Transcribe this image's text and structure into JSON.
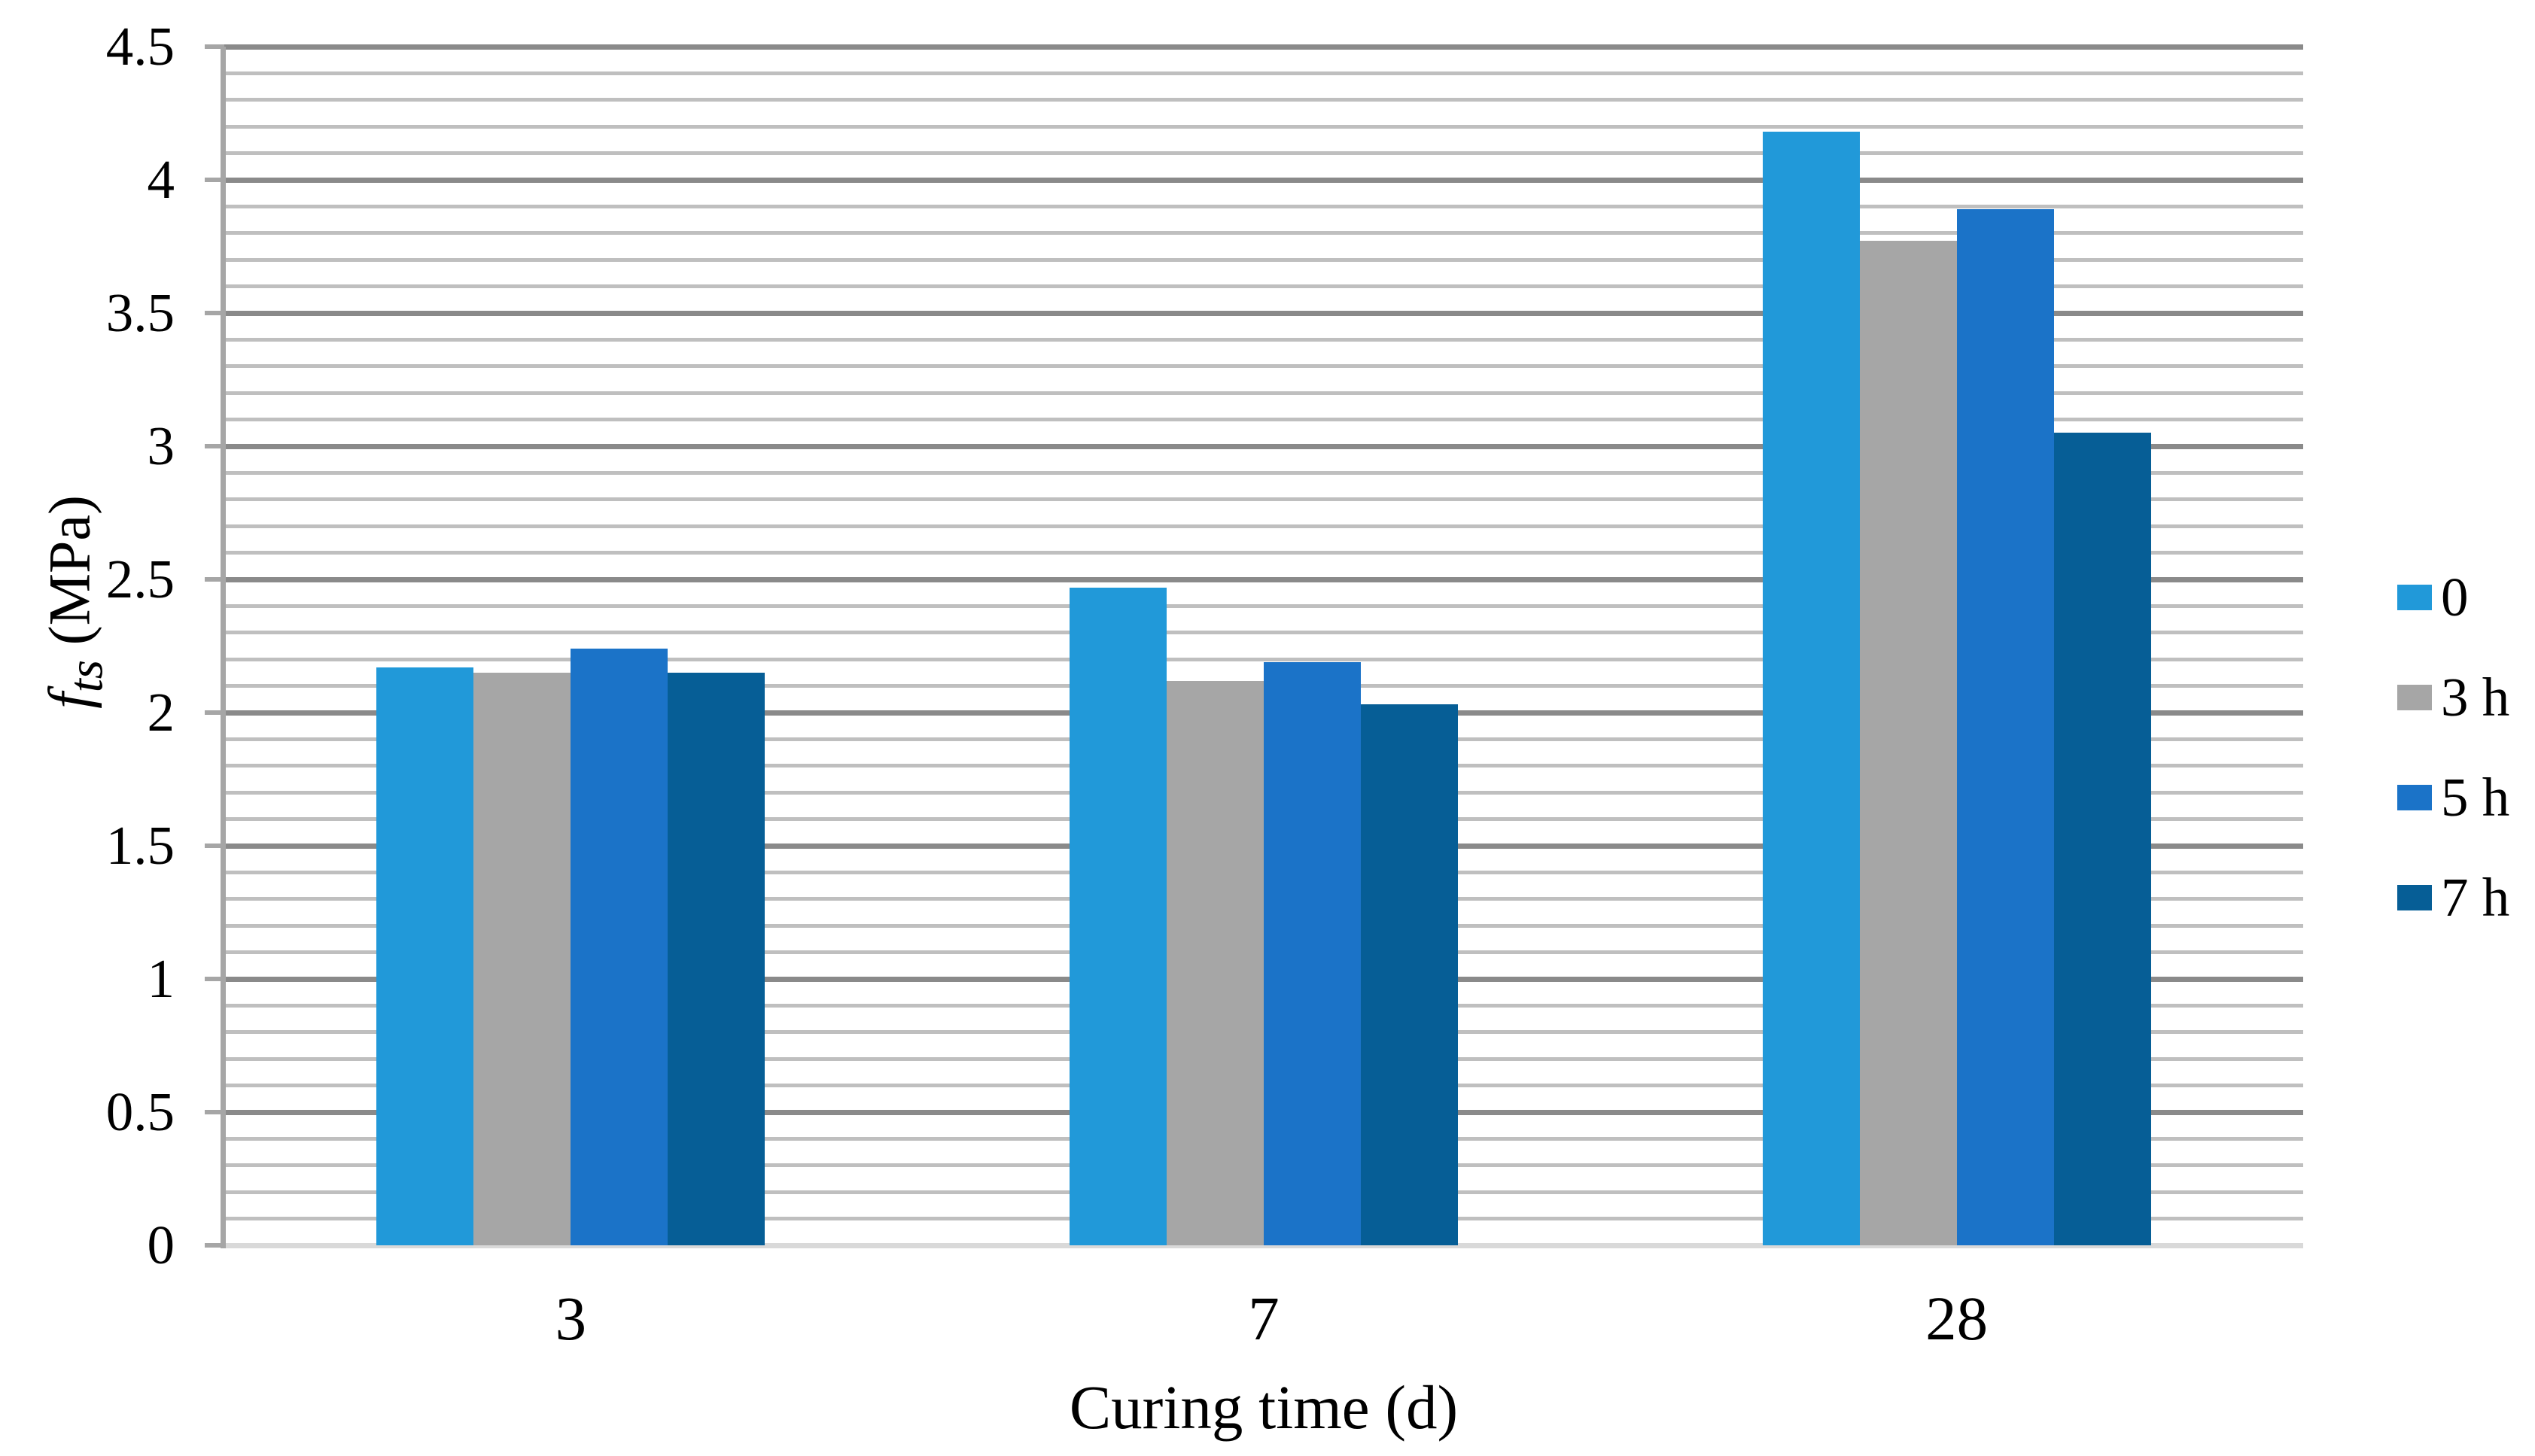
{
  "chart_data": {
    "type": "bar",
    "title": "",
    "xlabel": "Curing time (d)",
    "ylabel": {
      "var": "f",
      "sub": "ts",
      "unit": " (MPa)"
    },
    "categories": [
      "3",
      "7",
      "28"
    ],
    "series": [
      {
        "name": "0",
        "color": "#2199D9",
        "values": [
          2.17,
          2.47,
          4.18
        ]
      },
      {
        "name": "3 h",
        "color": "#A6A6A6",
        "values": [
          2.15,
          2.12,
          3.77
        ]
      },
      {
        "name": "5 h",
        "color": "#1B73C8",
        "values": [
          2.24,
          2.19,
          3.89
        ]
      },
      {
        "name": "7 h",
        "color": "#065E96",
        "values": [
          2.15,
          2.03,
          3.05
        ]
      }
    ],
    "ylim": [
      0,
      4.5
    ],
    "y_major_step": 0.5,
    "y_minor_step": 0.1,
    "y_tick_labels": [
      "0",
      "0.5",
      "1",
      "1.5",
      "2",
      "2.5",
      "3",
      "3.5",
      "4",
      "4.5"
    ],
    "grid": "horizontal major+minor",
    "legend_position": "right",
    "legend_entries": [
      "0",
      "3 h",
      "5 h",
      "7 h"
    ]
  },
  "colors": {
    "minor_gridline": "#BFBFBF",
    "major_gridline": "#8A8A8A",
    "axis_line": "#A6A6A6",
    "baseline": "#D9D9D9",
    "background": "#FFFFFF",
    "text": "#000000"
  }
}
